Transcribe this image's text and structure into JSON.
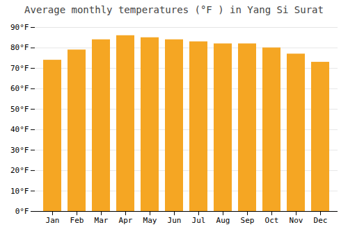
{
  "chart_data": {
    "type": "bar",
    "title": "Average monthly temperatures (°F ) in Yang Si Surat",
    "categories": [
      "Jan",
      "Feb",
      "Mar",
      "Apr",
      "May",
      "Jun",
      "Jul",
      "Aug",
      "Sep",
      "Oct",
      "Nov",
      "Dec"
    ],
    "values": [
      74,
      79,
      84,
      86,
      85,
      84,
      83,
      82,
      82,
      80,
      77,
      73
    ],
    "color": "#F5A623",
    "ylim": [
      0,
      90
    ],
    "yticks": [
      {
        "value": 0,
        "label": "0°F"
      },
      {
        "value": 10,
        "label": "10°F"
      },
      {
        "value": 20,
        "label": "20°F"
      },
      {
        "value": 30,
        "label": "30°F"
      },
      {
        "value": 40,
        "label": "40°F"
      },
      {
        "value": 50,
        "label": "50°F"
      },
      {
        "value": 60,
        "label": "60°F"
      },
      {
        "value": 70,
        "label": "70°F"
      },
      {
        "value": 80,
        "label": "80°F"
      },
      {
        "value": 90,
        "label": "90°F"
      }
    ],
    "grid": true
  }
}
